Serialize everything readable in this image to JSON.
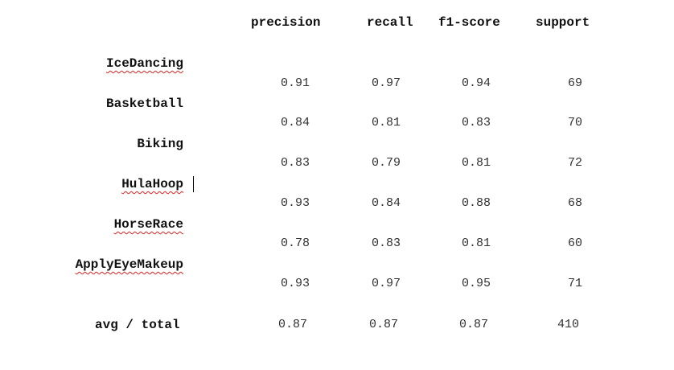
{
  "headers": {
    "precision": "precision",
    "recall": "recall",
    "f1": "f1-score",
    "support": "support"
  },
  "rows": [
    {
      "label": "IceDancing",
      "precision": "0.91",
      "recall": "0.97",
      "f1": "0.94",
      "support": "69"
    },
    {
      "label": "Basketball",
      "precision": "0.84",
      "recall": "0.81",
      "f1": "0.83",
      "support": "70"
    },
    {
      "label": "Biking",
      "precision": "0.83",
      "recall": "0.79",
      "f1": "0.81",
      "support": "72"
    },
    {
      "label": "HulaHoop",
      "precision": "0.93",
      "recall": "0.84",
      "f1": "0.88",
      "support": "68"
    },
    {
      "label": "HorseRace",
      "precision": "0.78",
      "recall": "0.83",
      "f1": "0.81",
      "support": "60"
    },
    {
      "label": "ApplyEyeMakeup",
      "precision": "0.93",
      "recall": "0.97",
      "f1": "0.95",
      "support": "71"
    }
  ],
  "total": {
    "label": "avg / total",
    "precision": "0.87",
    "recall": "0.87",
    "f1": "0.87",
    "support": "410"
  },
  "colors": {
    "spellcheck_underline": "#e02020",
    "text": "#111111"
  }
}
